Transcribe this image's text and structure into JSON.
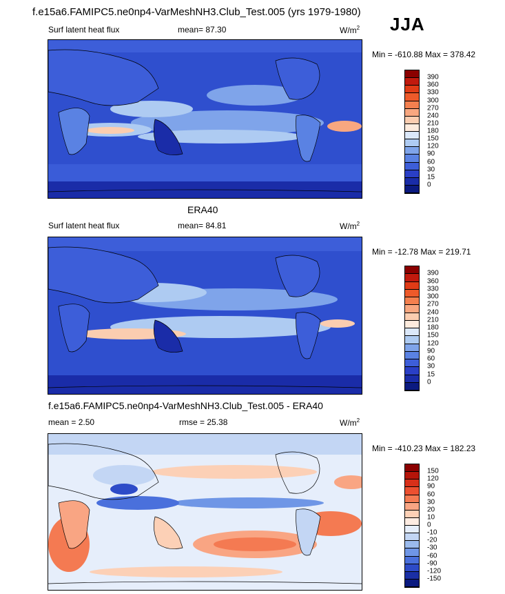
{
  "header": {
    "title": "f.e15a6.FAMIPC5.ne0np4-VarMeshNH3.Club_Test.005 (yrs 1979-1980)",
    "season": "JJA"
  },
  "panels": [
    {
      "id": "model",
      "subtitle": "",
      "variable": "Surf latent heat flux",
      "mean_label": "mean=  87.30",
      "units": "W/m",
      "units_sup": "2",
      "minmax": "Min = -610.88 Max = 378.42",
      "levels": [
        "390",
        "360",
        "330",
        "300",
        "270",
        "240",
        "210",
        "180",
        "150",
        "120",
        "90",
        "60",
        "30",
        "15",
        "0"
      ],
      "colors": [
        "#8b0000",
        "#c11a0e",
        "#e03b16",
        "#ee5a2a",
        "#f4804f",
        "#f8a780",
        "#fbcdb0",
        "#fdebdd",
        "#dbe8fa",
        "#aecbf2",
        "#7fa4ea",
        "#5a82e3",
        "#3d5ed9",
        "#2a3fc6",
        "#1a2ca8",
        "#0b1a80"
      ]
    },
    {
      "id": "obs",
      "subtitle": "ERA40",
      "variable": "Surf latent heat flux",
      "mean_label": "mean=  84.81",
      "units": "W/m",
      "units_sup": "2",
      "minmax": "Min = -12.78 Max = 219.71",
      "levels": [
        "390",
        "360",
        "330",
        "300",
        "270",
        "240",
        "210",
        "180",
        "150",
        "120",
        "90",
        "60",
        "30",
        "15",
        "0"
      ],
      "colors": [
        "#8b0000",
        "#c11a0e",
        "#e03b16",
        "#ee5a2a",
        "#f4804f",
        "#f8a780",
        "#fbcdb0",
        "#fdebdd",
        "#dbe8fa",
        "#aecbf2",
        "#7fa4ea",
        "#5a82e3",
        "#3d5ed9",
        "#2a3fc6",
        "#1a2ca8",
        "#0b1a80"
      ]
    },
    {
      "id": "diff",
      "subtitle": "f.e15a6.FAMIPC5.ne0np4-VarMeshNH3.Club_Test.005 - ERA40",
      "mean_label": "mean =   2.50",
      "rmse_label": "rmse =  25.38",
      "units": "W/m",
      "units_sup": "2",
      "minmax": "Min = -410.23 Max = 182.23",
      "levels": [
        "150",
        "120",
        "90",
        "60",
        "30",
        "20",
        "10",
        "0",
        "-10",
        "-20",
        "-30",
        "-60",
        "-90",
        "-120",
        "-150"
      ],
      "colors": [
        "#8b0000",
        "#b5150a",
        "#d8301a",
        "#ec5030",
        "#f47a52",
        "#f9a583",
        "#fcd0b6",
        "#fdece2",
        "#e6eefb",
        "#c3d6f4",
        "#9bbbee",
        "#6f96e6",
        "#4a70dc",
        "#2d4bc8",
        "#1a2fa5",
        "#0b1a80"
      ]
    }
  ]
}
